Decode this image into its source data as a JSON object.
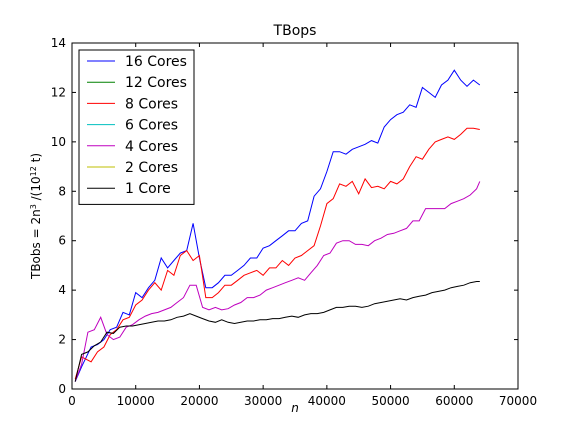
{
  "chart_data": {
    "type": "line",
    "title": "TBops",
    "xlabel": "n",
    "ylabel_main": "TBobs = 2n",
    "ylabel_sup1": "3",
    "ylabel_mid": " /(10",
    "ylabel_sup2": "12",
    "ylabel_end": " t)",
    "xlim": [
      0,
      70000
    ],
    "ylim": [
      0,
      14
    ],
    "xticks": [
      0,
      10000,
      20000,
      30000,
      40000,
      50000,
      60000,
      70000
    ],
    "yticks": [
      0,
      2,
      4,
      6,
      8,
      10,
      12,
      14
    ],
    "legend_position": "upper-left",
    "grid": false,
    "series": [
      {
        "name": "16 Cores",
        "color": "#0000ff",
        "x": [
          500,
          1500,
          3000,
          4000,
          5000,
          6000,
          7000,
          8000,
          9000,
          10000,
          11000,
          12000,
          13000,
          14000,
          15000,
          16000,
          17000,
          18000,
          19000,
          20000,
          21000,
          22000,
          23000,
          24000,
          25000,
          26000,
          27000,
          28000,
          29000,
          30000,
          31000,
          32000,
          33000,
          34000,
          35000,
          36000,
          37000,
          38000,
          39000,
          40000,
          41000,
          42000,
          43000,
          44000,
          45000,
          46000,
          47000,
          48000,
          49000,
          50000,
          51000,
          52000,
          53000,
          54000,
          55000,
          56000,
          57000,
          58000,
          59000,
          60000,
          61000,
          62000,
          63000,
          64000
        ],
        "values": [
          0.3,
          0.9,
          1.7,
          1.8,
          2.0,
          2.4,
          2.5,
          3.1,
          3.0,
          3.9,
          3.7,
          4.1,
          4.4,
          5.3,
          4.9,
          5.2,
          5.5,
          5.6,
          6.7,
          5.3,
          4.1,
          4.1,
          4.3,
          4.6,
          4.6,
          4.8,
          5.0,
          5.3,
          5.3,
          5.7,
          5.8,
          6.0,
          6.2,
          6.4,
          6.4,
          6.7,
          6.8,
          7.8,
          8.1,
          8.8,
          9.6,
          9.6,
          9.5,
          9.7,
          9.8,
          9.9,
          10.05,
          9.95,
          10.6,
          10.9,
          11.1,
          11.2,
          11.5,
          11.4,
          12.2,
          12.0,
          11.8,
          12.3,
          12.5,
          12.9,
          12.5,
          12.25,
          12.5,
          12.3
        ]
      },
      {
        "name": "12 Cores",
        "color": "#008000",
        "x": [],
        "values": []
      },
      {
        "name": "8 Cores",
        "color": "#ff0000",
        "x": [
          500,
          1500,
          3000,
          4000,
          5000,
          6000,
          7000,
          8000,
          9000,
          10000,
          11000,
          12000,
          13000,
          14000,
          15000,
          16000,
          17000,
          18000,
          19000,
          20000,
          21000,
          22000,
          23000,
          24000,
          25000,
          26000,
          27000,
          28000,
          29000,
          30000,
          31000,
          32000,
          33000,
          34000,
          35000,
          36000,
          37000,
          38000,
          39000,
          40000,
          41000,
          42000,
          43000,
          44000,
          45000,
          46000,
          47000,
          48000,
          49000,
          50000,
          51000,
          52000,
          53000,
          54000,
          55000,
          56000,
          57000,
          58000,
          59000,
          60000,
          61000,
          62000,
          63000,
          64000
        ],
        "values": [
          0.4,
          1.3,
          1.1,
          1.5,
          1.7,
          2.2,
          2.4,
          2.8,
          2.9,
          3.4,
          3.6,
          4.0,
          4.3,
          4.0,
          4.8,
          4.6,
          5.4,
          5.6,
          5.2,
          5.4,
          3.7,
          3.7,
          3.9,
          4.2,
          4.2,
          4.4,
          4.6,
          4.7,
          4.8,
          4.6,
          4.9,
          4.9,
          5.2,
          5.0,
          5.3,
          5.4,
          5.6,
          5.8,
          6.6,
          7.5,
          7.7,
          8.3,
          8.2,
          8.4,
          7.9,
          8.5,
          8.15,
          8.2,
          8.1,
          8.4,
          8.3,
          8.5,
          9.0,
          9.4,
          9.3,
          9.7,
          10.0,
          10.1,
          10.2,
          10.1,
          10.3,
          10.55,
          10.55,
          10.5
        ]
      },
      {
        "name": "6 Cores",
        "color": "#00bfbf",
        "x": [],
        "values": []
      },
      {
        "name": "4 Cores",
        "color": "#bf00bf",
        "x": [
          500,
          1500,
          2500,
          3500,
          4500,
          5500,
          6500,
          7500,
          8500,
          9500,
          10500,
          11500,
          12500,
          13500,
          14500,
          15500,
          16500,
          17500,
          18500,
          19500,
          20500,
          21500,
          22500,
          23500,
          24500,
          25500,
          26500,
          27500,
          28500,
          29500,
          30500,
          31500,
          32500,
          33500,
          34500,
          35500,
          36500,
          37500,
          38500,
          39500,
          40500,
          41500,
          42500,
          43500,
          44500,
          45500,
          46500,
          47500,
          48500,
          49500,
          50500,
          51500,
          52500,
          53500,
          54500,
          55500,
          56500,
          57500,
          58500,
          59500,
          60500,
          61500,
          62500,
          63500,
          64000
        ],
        "values": [
          0.3,
          1.0,
          2.3,
          2.4,
          2.9,
          2.2,
          2.0,
          2.1,
          2.5,
          2.6,
          2.8,
          2.95,
          3.05,
          3.1,
          3.2,
          3.3,
          3.5,
          3.7,
          4.2,
          4.2,
          3.3,
          3.2,
          3.3,
          3.2,
          3.25,
          3.4,
          3.5,
          3.7,
          3.7,
          3.8,
          4.0,
          4.1,
          4.2,
          4.3,
          4.4,
          4.5,
          4.4,
          4.7,
          5.0,
          5.4,
          5.5,
          5.9,
          6.0,
          6.0,
          5.85,
          5.85,
          5.8,
          6.0,
          6.1,
          6.25,
          6.3,
          6.4,
          6.5,
          6.8,
          6.8,
          7.3,
          7.3,
          7.3,
          7.3,
          7.5,
          7.6,
          7.7,
          7.85,
          8.1,
          8.4
        ]
      },
      {
        "name": "2 Cores",
        "color": "#bfbf00",
        "x": [],
        "values": []
      },
      {
        "name": "1 Core",
        "color": "#000000",
        "x": [
          500,
          1500,
          2500,
          3500,
          4500,
          5500,
          6500,
          7500,
          8500,
          9500,
          10500,
          11500,
          12500,
          13500,
          14500,
          15500,
          16500,
          17500,
          18500,
          19500,
          20500,
          21500,
          22500,
          23500,
          24500,
          25500,
          26500,
          27500,
          28500,
          29500,
          30500,
          31500,
          32500,
          33500,
          34500,
          35500,
          36500,
          37500,
          38500,
          39500,
          40500,
          41500,
          42500,
          43500,
          44500,
          45500,
          46500,
          47500,
          48500,
          49500,
          50500,
          51500,
          52500,
          53500,
          54500,
          55500,
          56500,
          57500,
          58500,
          59500,
          60500,
          61500,
          62500,
          63500,
          64000
        ],
        "values": [
          0.3,
          1.4,
          1.5,
          1.75,
          1.9,
          2.3,
          2.25,
          2.5,
          2.55,
          2.55,
          2.6,
          2.65,
          2.7,
          2.75,
          2.75,
          2.8,
          2.9,
          2.95,
          3.05,
          2.95,
          2.85,
          2.75,
          2.7,
          2.8,
          2.7,
          2.65,
          2.7,
          2.75,
          2.75,
          2.8,
          2.8,
          2.85,
          2.85,
          2.9,
          2.95,
          2.9,
          3.0,
          3.05,
          3.05,
          3.1,
          3.2,
          3.3,
          3.3,
          3.35,
          3.35,
          3.3,
          3.35,
          3.45,
          3.5,
          3.55,
          3.6,
          3.65,
          3.6,
          3.7,
          3.75,
          3.8,
          3.9,
          3.95,
          4.0,
          4.1,
          4.15,
          4.2,
          4.3,
          4.35,
          4.35
        ]
      }
    ]
  }
}
